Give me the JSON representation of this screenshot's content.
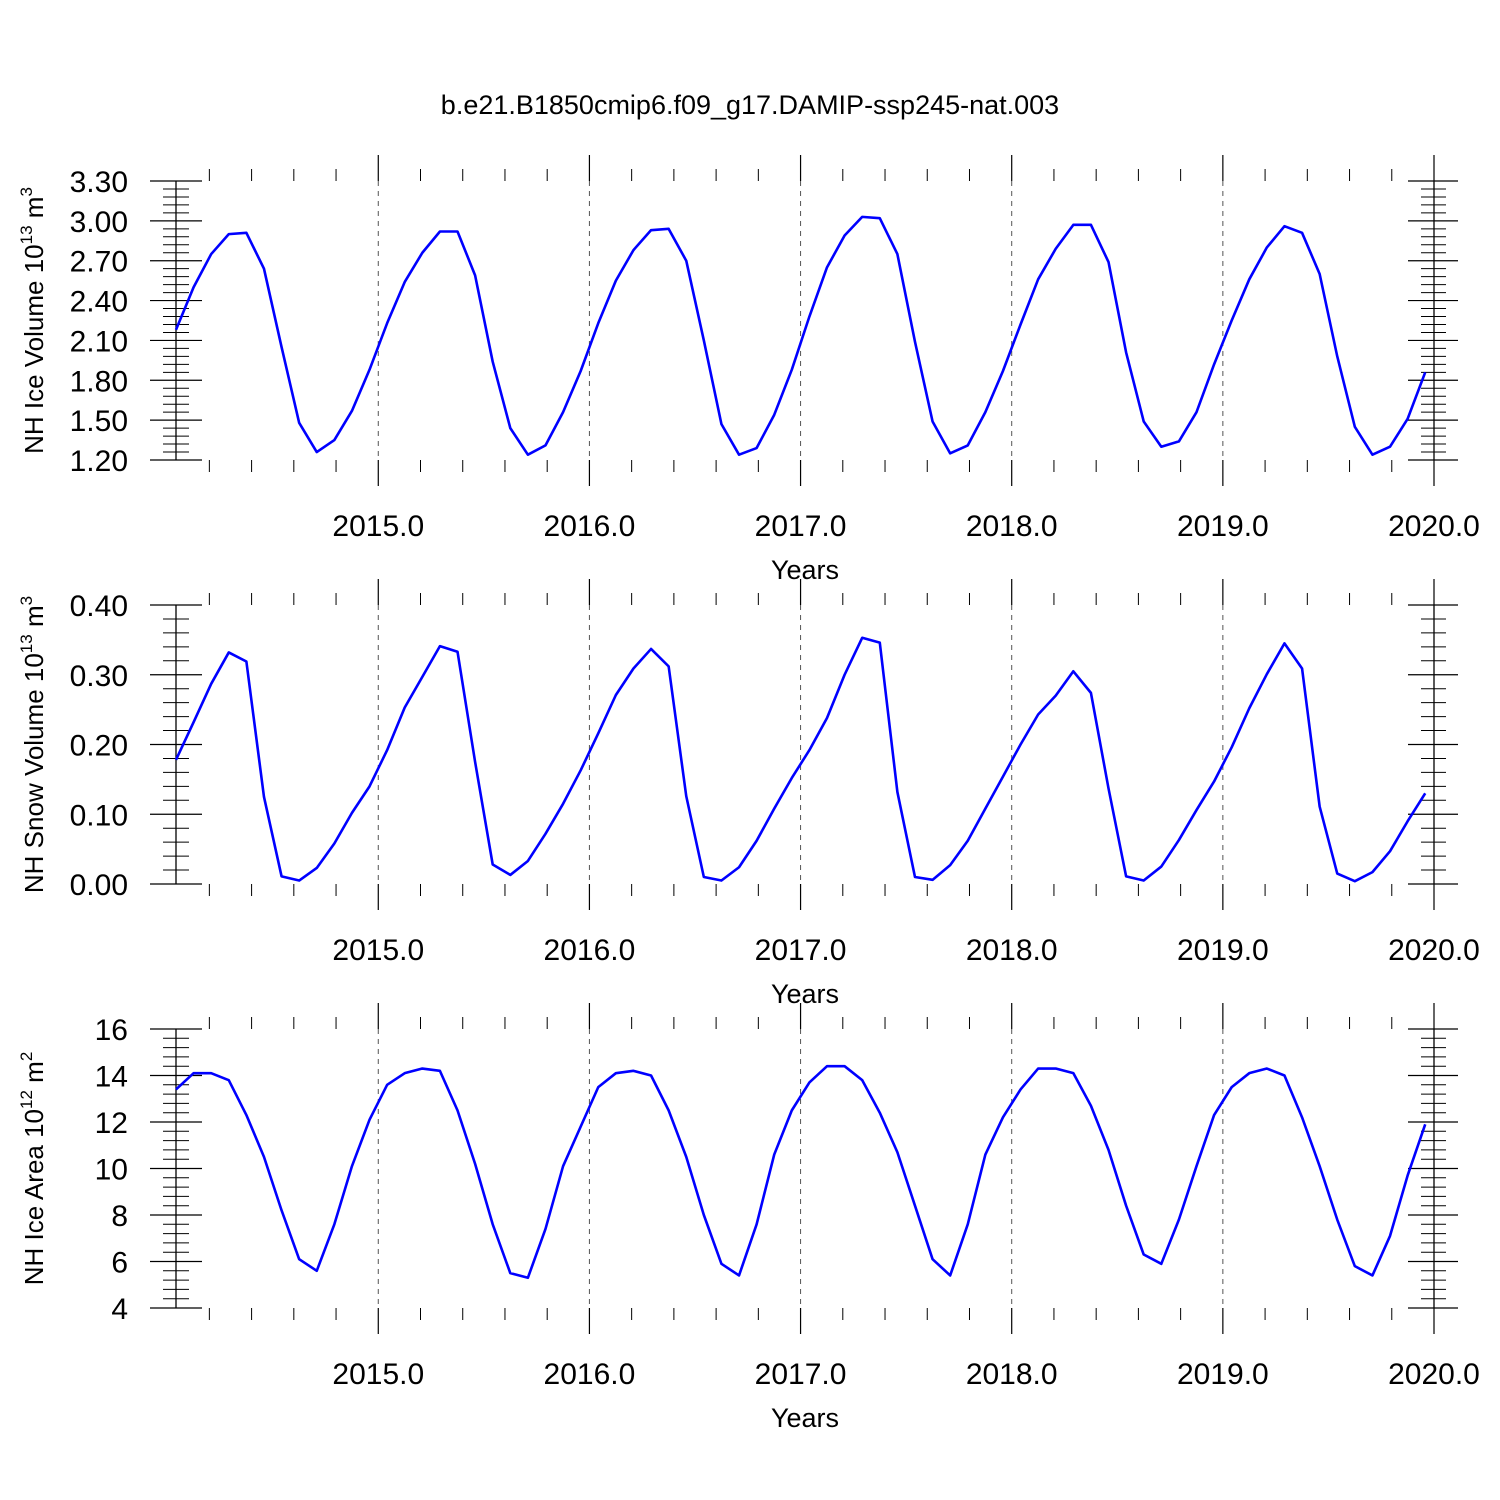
{
  "title": "b.e21.B1850cmip6.f09_g17.DAMIP-ssp245-nat.003",
  "colors": {
    "series": "#0000ff",
    "axis": "#000000",
    "grid": "#555555"
  },
  "chart_data": [
    {
      "type": "line",
      "ylabel": {
        "main": "NH Ice Volume 10",
        "exp": "13",
        "unit": " m",
        "unit_exp": "3"
      },
      "xlabel": "Years",
      "xlim": [
        2014.042,
        2020.0
      ],
      "ylim": [
        1.2,
        3.3
      ],
      "x_ticks": [
        2015.0,
        2016.0,
        2017.0,
        2018.0,
        2019.0,
        2020.0
      ],
      "x_tick_labels": [
        "2015.0",
        "2016.0",
        "2017.0",
        "2018.0",
        "2019.0",
        "2020.0"
      ],
      "y_ticks": [
        1.2,
        1.5,
        1.8,
        2.1,
        2.4,
        2.7,
        3.0,
        3.3
      ],
      "y_tick_labels": [
        "1.20",
        "1.50",
        "1.80",
        "2.10",
        "2.40",
        "2.70",
        "3.00",
        "3.30"
      ],
      "x_start": 2014.042,
      "x_step": 0.08333,
      "values": [
        2.18,
        2.5,
        2.75,
        2.9,
        2.91,
        2.64,
        2.05,
        1.48,
        1.26,
        1.35,
        1.57,
        1.88,
        2.23,
        2.54,
        2.76,
        2.92,
        2.92,
        2.59,
        1.94,
        1.44,
        1.24,
        1.31,
        1.56,
        1.87,
        2.23,
        2.55,
        2.78,
        2.93,
        2.94,
        2.7,
        2.1,
        1.47,
        1.24,
        1.29,
        1.54,
        1.88,
        2.28,
        2.65,
        2.89,
        3.03,
        3.02,
        2.75,
        2.09,
        1.49,
        1.25,
        1.31,
        1.56,
        1.87,
        2.22,
        2.56,
        2.79,
        2.97,
        2.97,
        2.69,
        2.01,
        1.49,
        1.3,
        1.34,
        1.56,
        1.92,
        2.25,
        2.56,
        2.8,
        2.96,
        2.91,
        2.6,
        1.98,
        1.45,
        1.24,
        1.3,
        1.51,
        1.86
      ]
    },
    {
      "type": "line",
      "ylabel": {
        "main": "NH Snow Volume 10",
        "exp": "13",
        "unit": " m",
        "unit_exp": "3"
      },
      "xlabel": "Years",
      "xlim": [
        2014.042,
        2020.0
      ],
      "ylim": [
        0.0,
        0.4
      ],
      "x_ticks": [
        2015.0,
        2016.0,
        2017.0,
        2018.0,
        2019.0,
        2020.0
      ],
      "x_tick_labels": [
        "2015.0",
        "2016.0",
        "2017.0",
        "2018.0",
        "2019.0",
        "2020.0"
      ],
      "y_ticks": [
        0.0,
        0.1,
        0.2,
        0.3,
        0.4
      ],
      "y_tick_labels": [
        "0.00",
        "0.10",
        "0.20",
        "0.30",
        "0.40"
      ],
      "x_start": 2014.042,
      "x_step": 0.08333,
      "values": [
        0.178,
        0.232,
        0.287,
        0.332,
        0.319,
        0.125,
        0.011,
        0.005,
        0.023,
        0.058,
        0.102,
        0.14,
        0.192,
        0.253,
        0.297,
        0.341,
        0.333,
        0.175,
        0.028,
        0.013,
        0.033,
        0.072,
        0.115,
        0.163,
        0.216,
        0.271,
        0.309,
        0.337,
        0.312,
        0.126,
        0.01,
        0.005,
        0.024,
        0.062,
        0.108,
        0.152,
        0.192,
        0.238,
        0.3,
        0.353,
        0.346,
        0.132,
        0.01,
        0.006,
        0.027,
        0.062,
        0.108,
        0.154,
        0.2,
        0.243,
        0.27,
        0.305,
        0.274,
        0.137,
        0.011,
        0.005,
        0.025,
        0.063,
        0.106,
        0.147,
        0.196,
        0.252,
        0.301,
        0.345,
        0.309,
        0.111,
        0.015,
        0.004,
        0.017,
        0.047,
        0.09,
        0.13
      ]
    },
    {
      "type": "line",
      "ylabel": {
        "main": "NH Ice Area 10",
        "exp": "12",
        "unit": " m",
        "unit_exp": "2"
      },
      "xlabel": "Years",
      "xlim": [
        2014.042,
        2020.0
      ],
      "ylim": [
        4,
        16
      ],
      "x_ticks": [
        2015.0,
        2016.0,
        2017.0,
        2018.0,
        2019.0,
        2020.0
      ],
      "x_tick_labels": [
        "2015.0",
        "2016.0",
        "2017.0",
        "2018.0",
        "2019.0",
        "2020.0"
      ],
      "y_ticks": [
        4,
        6,
        8,
        10,
        12,
        14,
        16
      ],
      "y_tick_labels": [
        "4",
        "6",
        "8",
        "10",
        "12",
        "14",
        "16"
      ],
      "x_start": 2014.042,
      "x_step": 0.08333,
      "values": [
        13.4,
        14.1,
        14.1,
        13.8,
        12.3,
        10.5,
        8.2,
        6.1,
        5.6,
        7.6,
        10.1,
        12.1,
        13.6,
        14.1,
        14.3,
        14.2,
        12.5,
        10.2,
        7.6,
        5.5,
        5.3,
        7.4,
        10.1,
        11.8,
        13.5,
        14.1,
        14.2,
        14.0,
        12.5,
        10.5,
        8.0,
        5.9,
        5.4,
        7.6,
        10.6,
        12.5,
        13.7,
        14.4,
        14.4,
        13.8,
        12.4,
        10.7,
        8.4,
        6.1,
        5.4,
        7.6,
        10.6,
        12.2,
        13.4,
        14.3,
        14.3,
        14.1,
        12.7,
        10.8,
        8.4,
        6.3,
        5.9,
        7.8,
        10.1,
        12.3,
        13.5,
        14.1,
        14.3,
        14.0,
        12.2,
        10.1,
        7.8,
        5.8,
        5.4,
        7.1,
        9.7,
        11.9
      ]
    }
  ]
}
